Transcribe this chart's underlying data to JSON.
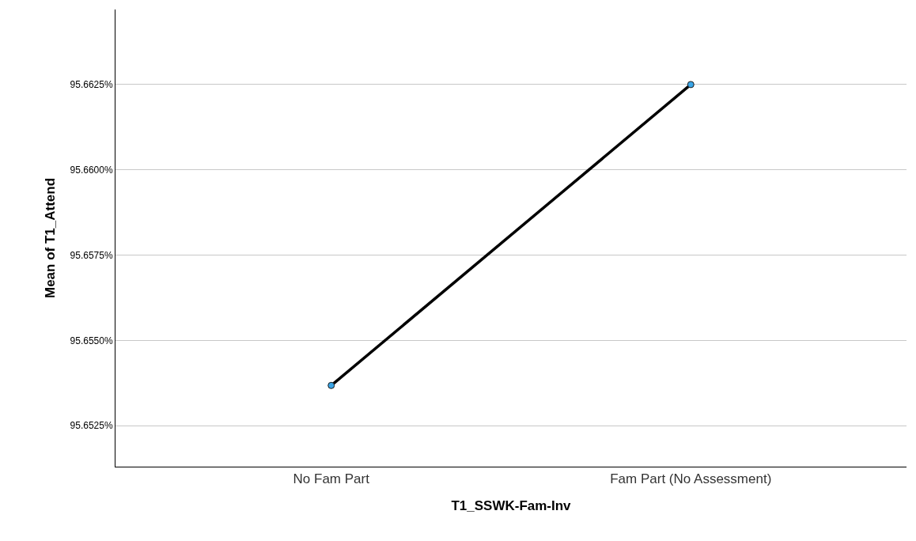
{
  "chart_data": {
    "type": "line",
    "xlabel": "T1_SSWK-Fam-Inv",
    "ylabel": "Mean of T1_Attend",
    "categories": [
      "No Fam Part",
      "Fam Part (No Assessment)"
    ],
    "series": [
      {
        "color": "#000000",
        "values": [
          95.65368,
          95.6625
        ]
      }
    ],
    "marker": "circle",
    "ylim": [
      95.6513,
      95.6647
    ],
    "yticks": [
      {
        "value": 95.6525,
        "label": "95.6525%"
      },
      {
        "value": 95.655,
        "label": "95.6550%"
      },
      {
        "value": 95.6575,
        "label": "95.6575%"
      },
      {
        "value": 95.66,
        "label": "95.6600%"
      },
      {
        "value": 95.6625,
        "label": "95.6625%"
      }
    ],
    "grid": "y",
    "legend": false
  }
}
